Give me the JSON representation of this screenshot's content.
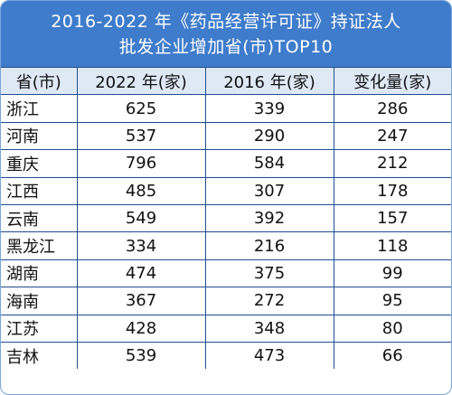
{
  "title": {
    "line1": "2016-2022 年《药品经营许可证》持证法人",
    "line2": "批发企业增加省(市)TOP10"
  },
  "headers": [
    "省(市)",
    "2022 年(家)",
    "2016 年(家)",
    "变化量(家)"
  ],
  "rows": [
    {
      "province": "浙江",
      "y2022": "625",
      "y2016": "339",
      "change": "286"
    },
    {
      "province": "河南",
      "y2022": "537",
      "y2016": "290",
      "change": "247"
    },
    {
      "province": "重庆",
      "y2022": "796",
      "y2016": "584",
      "change": "212"
    },
    {
      "province": "江西",
      "y2022": "485",
      "y2016": "307",
      "change": "178"
    },
    {
      "province": "云南",
      "y2022": "549",
      "y2016": "392",
      "change": "157"
    },
    {
      "province": "黑龙江",
      "y2022": "334",
      "y2016": "216",
      "change": "118"
    },
    {
      "province": "湖南",
      "y2022": "474",
      "y2016": "375",
      "change": "99"
    },
    {
      "province": "海南",
      "y2022": "367",
      "y2016": "272",
      "change": "95"
    },
    {
      "province": "江苏",
      "y2022": "428",
      "y2016": "348",
      "change": "80"
    },
    {
      "province": "吉林",
      "y2022": "539",
      "y2016": "473",
      "change": "66"
    }
  ],
  "colors": {
    "header_bg": "#3f7ccb",
    "column_header_bg": "#dfe9f6",
    "border": "#1f4e8e"
  }
}
